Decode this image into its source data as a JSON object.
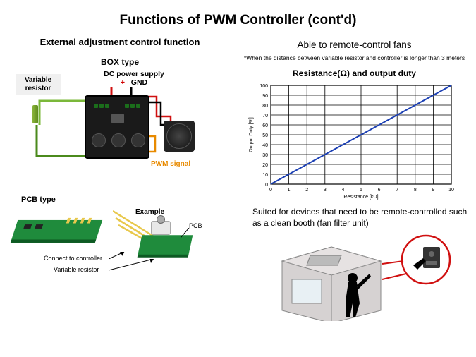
{
  "title": "Functions of PWM Controller (cont'd)",
  "left": {
    "heading": "External adjustment control function",
    "box_type_label": "BOX type",
    "var_res_label": "Variable resistor",
    "dc_supply_label": "DC power supply",
    "dc_plus": "+",
    "dc_gnd": "GND",
    "pwm_signal_label": "PWM signal",
    "pcb_type_label": "PCB type",
    "example_label": "Example",
    "pcb_label": "PCB",
    "connect_label": "Connect to controller",
    "vr_label": "Variable resistor"
  },
  "right": {
    "heading": "Able to remote-control fans",
    "footnote": "*When the distance between variable resistor and controller is longer than 3 meters",
    "chart": {
      "type": "line",
      "title": "Resistance(Ω) and output duty",
      "x_label": "Resistance [kΩ]",
      "y_label": "Output Duty [%]",
      "xlim": [
        0,
        10
      ],
      "ylim": [
        0,
        100
      ],
      "xtick_step": 1,
      "ytick_step": 10,
      "grid_color": "#000000",
      "line_color": "#1b3fb3",
      "line_width": 2,
      "background_color": "#ffffff",
      "label_fontsize": 7,
      "tick_fontsize": 7,
      "data": {
        "x": [
          0,
          1,
          2,
          3,
          4,
          5,
          6,
          7,
          8,
          9,
          10
        ],
        "y": [
          0,
          10,
          20,
          30,
          40,
          50,
          60,
          70,
          80,
          90,
          100
        ]
      }
    },
    "suited_text": "Suited for devices that need to be remote-controlled such as a clean booth (fan filter unit)"
  },
  "colors": {
    "wire_green": "#4b8a1c",
    "wire_red": "#d01010",
    "wire_black": "#000000",
    "wire_orange": "#e88a00",
    "wire_yellow": "#e8c84c",
    "pcb_green": "#1f8b3c",
    "booth_gray": "#d4d0d0",
    "magnify_red": "#d01010"
  }
}
